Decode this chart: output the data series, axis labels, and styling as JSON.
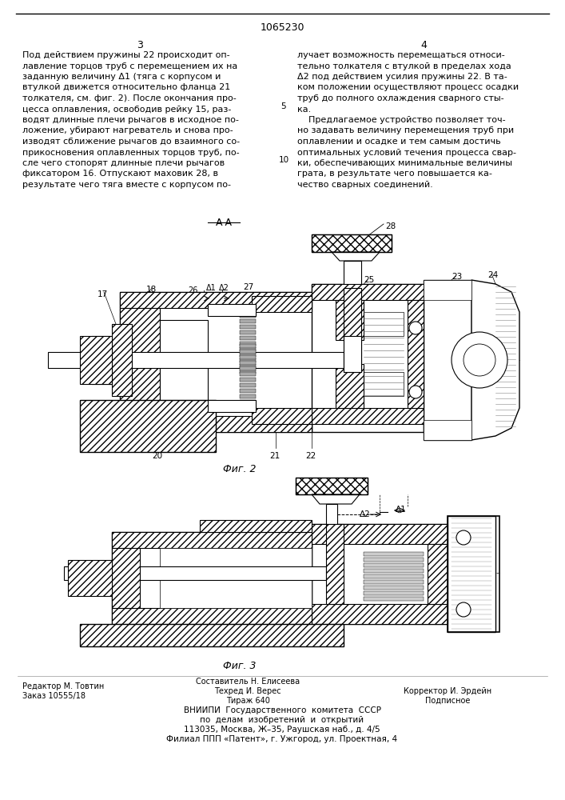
{
  "patent_number": "1065230",
  "page_left": "3",
  "page_right": "4",
  "col1_text_lines": [
    "Под действием пружины 22 происходит оп-",
    "лавление торцов труб с перемещением их на",
    "заданную величину Δ1 (тяга с корпусом и",
    "втулкой движется относительно фланца 21",
    "толкателя, см. фиг. 2). После окончания про-",
    "цесса оплавления, освободив рейку 15, раз-",
    "водят длинные плечи рычагов в исходное по-",
    "ложение, убирают нагреватель и снова про-",
    "изводят сближение рычагов до взаимного со-",
    "прикосновения оплавленных торцов труб, по-",
    "сле чего стопорят длинные плечи рычагов",
    "фиксатором 16. Отпускают маховик 28, в",
    "результате чего тяга вместе с корпусом по-"
  ],
  "col2_text_lines": [
    "лучает возможность перемещаться относи-",
    "тельно толкателя с втулкой в пределах хода",
    "Δ2 под действием усилия пружины 22. В та-",
    "ком положении осуществляют процесс осадки",
    "труб до полного охлаждения сварного сты-",
    "ка.",
    "    Предлагаемое устройство позволяет точ-",
    "но задавать величину перемещения труб при",
    "оплавлении и осадке и тем самым достичь",
    "оптимальных условий течения процесса свар-",
    "ки, обеспечивающих минимальные величины",
    "грата, в результате чего повышается ка-",
    "чество сварных соединений."
  ],
  "line_number_5": "5",
  "line_number_10": "10",
  "section_label": "A-A",
  "fig2_label": "Фиг. 2",
  "fig3_label": "Фиг. 3",
  "footer_sestavitel": "Составитель Н. Елисеева",
  "footer_redaktor": "Редактор М. Товтин",
  "footer_tehred": "Техред И. Верес",
  "footer_korrektor": "Корректор И. Эрдейн",
  "footer_zakaz": "Заказ 10555/18",
  "footer_tirazh": "Тираж 640",
  "footer_podpisnoe": "Подписное",
  "footer_vniip1": "ВНИИПИ  Государственного  комитета  СССР",
  "footer_vniip2": "по  делам  изобретений  и  открытий",
  "footer_addr1": "113035, Москва, Ж–35, Раушская наб., д. 4/5",
  "footer_addr2": "Филиал ППП «Патент», г. Ужгород, ул. Проектная, 4",
  "bg_color": "#ffffff"
}
